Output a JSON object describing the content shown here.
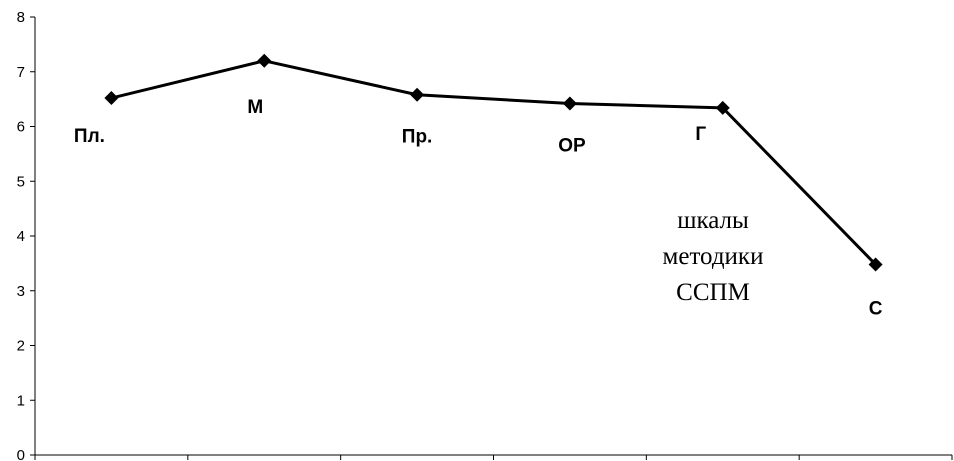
{
  "chart_data": {
    "type": "line",
    "title": "",
    "xlabel": "",
    "ylabel": "",
    "ylim": [
      0,
      8
    ],
    "yticks": [
      "0",
      "1",
      "2",
      "3",
      "4",
      "5",
      "6",
      "7",
      "8"
    ],
    "grid": false,
    "legend": "none",
    "categories": [
      "Пл.",
      "М",
      "Пр.",
      "ОР",
      "Г",
      "С"
    ],
    "series": [
      {
        "values": [
          6.52,
          7.2,
          6.58,
          6.42,
          6.34,
          3.48
        ],
        "color": "#000000",
        "marker": "diamond"
      }
    ],
    "annotation": [
      "шкалы",
      "методики",
      "ССПМ"
    ]
  }
}
